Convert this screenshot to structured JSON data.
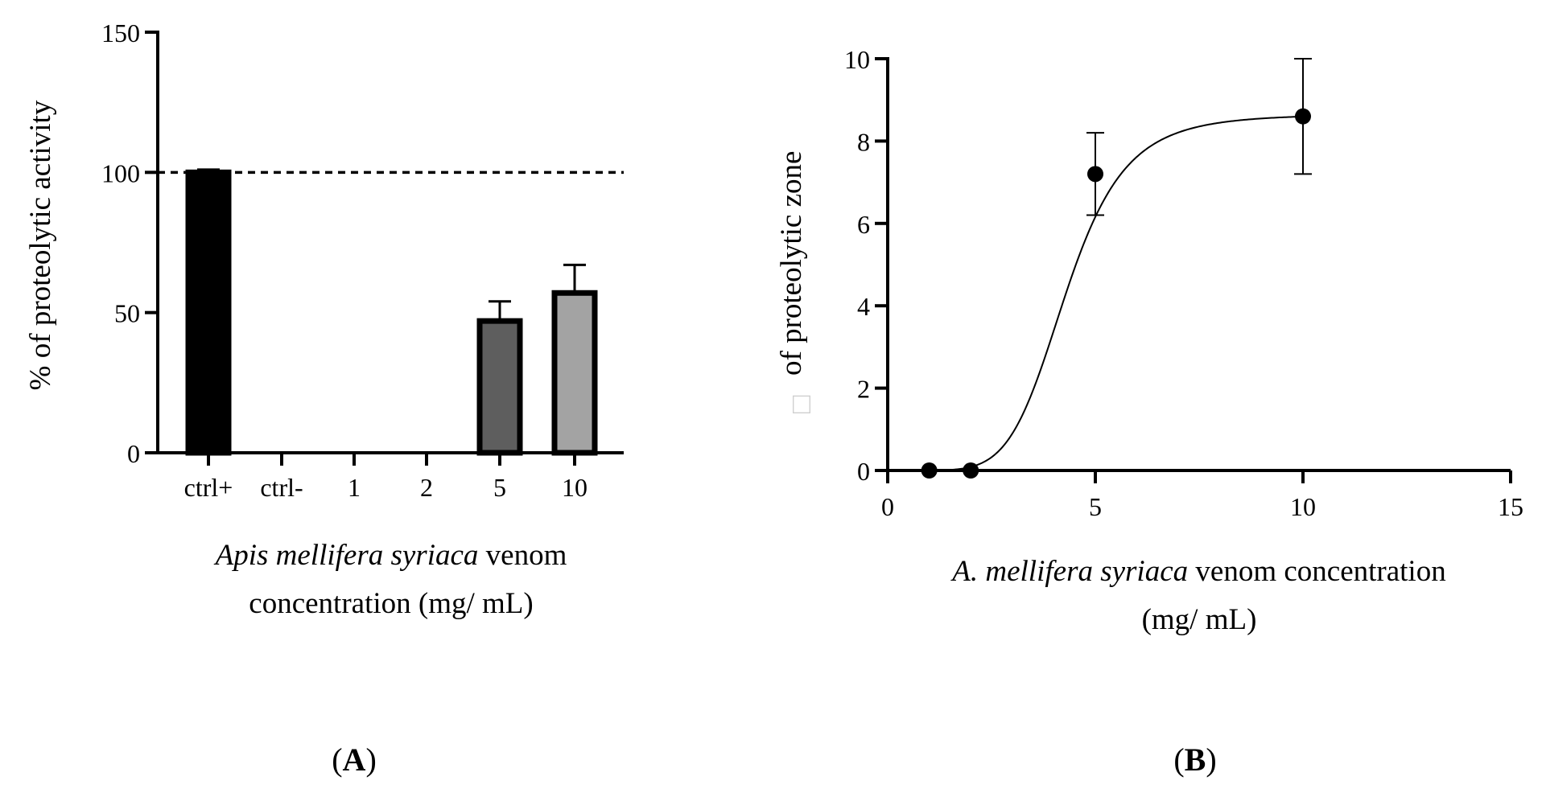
{
  "chart_data": [
    {
      "panel": "A",
      "type": "bar",
      "categories": [
        "ctrl+",
        "ctrl-",
        "1",
        "2",
        "5",
        "10"
      ],
      "values": [
        100,
        0,
        0,
        0,
        47,
        57
      ],
      "errors": [
        1,
        0,
        0,
        0,
        7,
        10
      ],
      "colors": [
        "#000000",
        "#ffffff",
        "#ffffff",
        "#ffffff",
        "#5e5e5e",
        "#a3a3a3"
      ],
      "ylim": [
        0,
        150
      ],
      "yticks": [
        "0",
        "50",
        "100",
        "150"
      ],
      "reference_line": 100,
      "ylabel": "% of proteolytic activity",
      "xlabel_italic": "Apis mellifera syriaca",
      "xlabel_line1_rest": " venom",
      "xlabel_line2": "concentration (mg/ mL)",
      "panel_label_open": "(",
      "panel_label": "A",
      "panel_label_close": ")"
    },
    {
      "panel": "B",
      "type": "scatter",
      "x": [
        1,
        2,
        5,
        10
      ],
      "y": [
        0,
        0,
        7.2,
        8.6
      ],
      "errors": [
        0,
        0,
        1.0,
        1.4
      ],
      "fit": {
        "bottom": 0,
        "top": 8.65,
        "ec50": 4.3,
        "hill": 6
      },
      "xlim": [
        0,
        15
      ],
      "ylim": [
        0,
        10
      ],
      "xticks": [
        "0",
        "5",
        "10",
        "15"
      ],
      "yticks": [
        "0",
        "2",
        "4",
        "6",
        "8",
        "10"
      ],
      "ylabel": "of proteolytic zone",
      "ylabel_symbol": "□",
      "xlabel_italic": "A. mellifera syriaca",
      "xlabel_line1_rest": " venom concentration",
      "xlabel_line2": "(mg/ mL)",
      "panel_label_open": "(",
      "panel_label": "B",
      "panel_label_close": ")"
    }
  ]
}
